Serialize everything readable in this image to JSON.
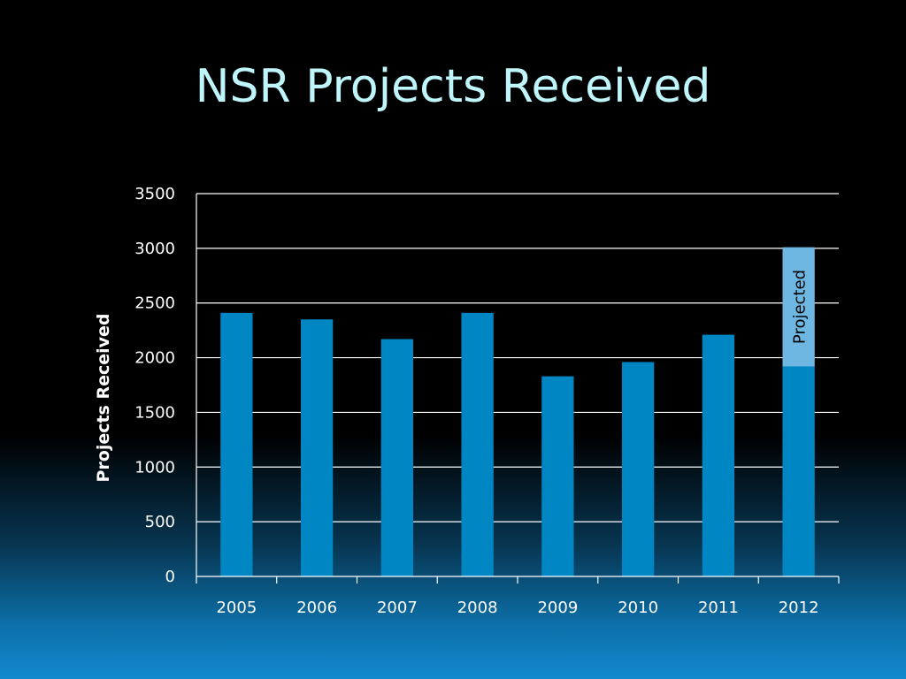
{
  "chart_data": {
    "type": "bar",
    "title": "NSR Projects Received",
    "xlabel": "",
    "ylabel": "Projects Received",
    "categories": [
      "2005",
      "2006",
      "2007",
      "2008",
      "2009",
      "2010",
      "2011",
      "2012"
    ],
    "series": [
      {
        "values": [
          2410,
          2350,
          2170,
          2410,
          1830,
          1960,
          2210,
          1920
        ],
        "color": "#0086c3"
      },
      {
        "values": [
          0,
          0,
          0,
          0,
          0,
          0,
          0,
          1090
        ],
        "color": "#6fb7e3"
      }
    ],
    "annotations": [
      {
        "category": "2012",
        "text": "Projected"
      }
    ],
    "ylim": [
      0,
      3500
    ],
    "yticks": [
      0,
      500,
      1000,
      1500,
      2000,
      2500,
      3000,
      3500
    ],
    "grid": true,
    "legend": "none",
    "colors": {
      "background": "#000000",
      "title": "#bff6fb",
      "grid": "#ffffff",
      "text": "#ffffff"
    }
  }
}
